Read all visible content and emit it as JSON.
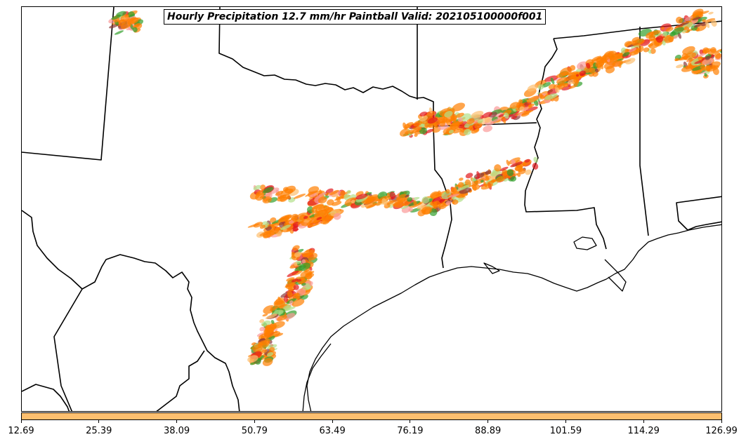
{
  "title": "Hourly Precipitation 12.7 mm/hr Paintball Valid: 202105100000f001",
  "colorbar": {
    "color": "#fdbf6f",
    "ticks": [
      "12.69",
      "25.39",
      "38.09",
      "50.79",
      "63.49",
      "76.19",
      "88.89",
      "101.59",
      "114.29",
      "126.99"
    ]
  },
  "paintball_colors": [
    "#ff7f00",
    "#e31a1c",
    "#33a02c",
    "#b2df8a",
    "#fb9a99",
    "#fdbf6f",
    "#8b3a3a"
  ]
}
